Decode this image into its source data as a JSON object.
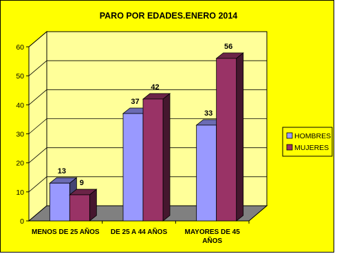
{
  "chart_data": {
    "type": "bar",
    "title": "PARO POR EDADES.ENERO 2014",
    "categories": [
      [
        "MENOS DE 25 AÑOS"
      ],
      [
        "DE 25 A 44 AÑOS"
      ],
      [
        "MAYORES DE 45",
        "AÑOS"
      ]
    ],
    "series": [
      {
        "name": "HOMBRES",
        "values": [
          13,
          37,
          33
        ],
        "color": "#9999ff"
      },
      {
        "name": "MUJERES",
        "values": [
          9,
          42,
          56
        ],
        "color": "#993366"
      }
    ],
    "ylim": [
      0,
      60
    ],
    "yticks": [
      0,
      10,
      20,
      30,
      40,
      50,
      60
    ],
    "grid": true,
    "legend_position": "right",
    "background": "#ffff00",
    "plot_wall": "#ffff99",
    "floor_color": "#808080",
    "three_d": true
  }
}
